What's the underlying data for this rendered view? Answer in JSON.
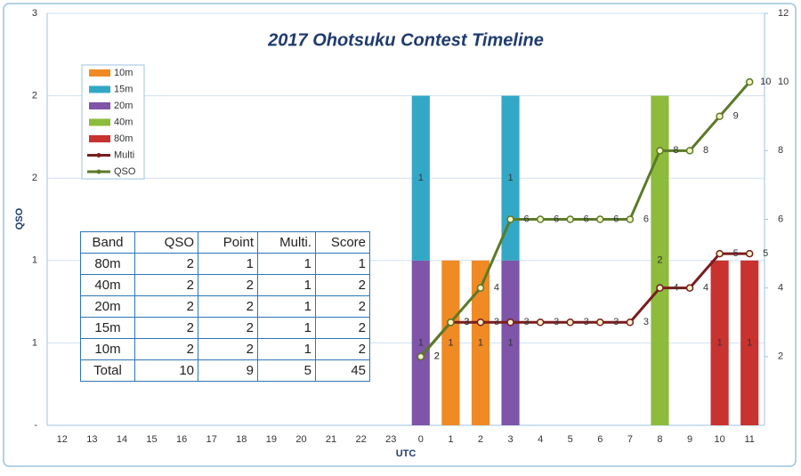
{
  "chart_data": {
    "type": "bar",
    "stacked": true,
    "title": "2017 Ohotsuku Contest Timeline",
    "y_label": "QSO",
    "x_label": "UTC",
    "categories": [
      "12",
      "13",
      "14",
      "15",
      "16",
      "17",
      "18",
      "19",
      "20",
      "21",
      "22",
      "23",
      "0",
      "1",
      "2",
      "3",
      "4",
      "5",
      "6",
      "7",
      "8",
      "9",
      "10",
      "11"
    ],
    "ylim": [
      0,
      2.5
    ],
    "yticks": [
      {
        "value": 0,
        "label": "-"
      },
      {
        "value": 0.5,
        "label": "1"
      },
      1,
      {
        "value": 1.5,
        "label": "2"
      },
      2,
      {
        "value": 2.5,
        "label": "3"
      }
    ],
    "y2lim": [
      0,
      12
    ],
    "y2ticks": [
      2,
      4,
      6,
      8,
      10,
      12
    ],
    "grid": true,
    "legend": "upper left",
    "series": [
      {
        "name": "10m",
        "color": "#f08a24",
        "values": [
          null,
          null,
          null,
          null,
          null,
          null,
          null,
          null,
          null,
          null,
          null,
          null,
          null,
          1,
          1,
          null,
          null,
          null,
          null,
          null,
          null,
          null,
          null,
          null
        ]
      },
      {
        "name": "15m",
        "color": "#33a8c6",
        "values": [
          null,
          null,
          null,
          null,
          null,
          null,
          null,
          null,
          null,
          null,
          null,
          null,
          1,
          null,
          null,
          1,
          null,
          null,
          null,
          null,
          null,
          null,
          null,
          null
        ]
      },
      {
        "name": "20m",
        "color": "#7e55a8",
        "values": [
          null,
          null,
          null,
          null,
          null,
          null,
          null,
          null,
          null,
          null,
          null,
          null,
          1,
          null,
          null,
          1,
          null,
          null,
          null,
          null,
          null,
          null,
          null,
          null
        ]
      },
      {
        "name": "40m",
        "color": "#8dbb3c",
        "values": [
          null,
          null,
          null,
          null,
          null,
          null,
          null,
          null,
          null,
          null,
          null,
          null,
          null,
          null,
          null,
          null,
          null,
          null,
          null,
          null,
          2,
          null,
          null,
          null
        ]
      },
      {
        "name": "80m",
        "color": "#c8322f",
        "values": [
          null,
          null,
          null,
          null,
          null,
          null,
          null,
          null,
          null,
          null,
          null,
          null,
          null,
          null,
          null,
          null,
          null,
          null,
          null,
          null,
          null,
          null,
          1,
          1
        ]
      },
      {
        "name": "Multi",
        "type": "line",
        "axis": "y2",
        "color": "#7a1d1d",
        "values": [
          null,
          null,
          null,
          null,
          null,
          null,
          null,
          null,
          null,
          null,
          null,
          null,
          2,
          3,
          3,
          3,
          3,
          3,
          3,
          3,
          4,
          4,
          5,
          5
        ]
      },
      {
        "name": "QSO",
        "type": "line",
        "axis": "y2",
        "color": "#5c7a28",
        "values": [
          null,
          null,
          null,
          null,
          null,
          null,
          null,
          null,
          null,
          null,
          null,
          null,
          2,
          3,
          4,
          6,
          6,
          6,
          6,
          6,
          8,
          8,
          9,
          10
        ]
      }
    ],
    "table": {
      "header": [
        "Band",
        "QSO",
        "Point",
        "Multi.",
        "Score"
      ],
      "rows": [
        [
          "80m",
          2,
          1,
          1,
          1
        ],
        [
          "40m",
          2,
          2,
          1,
          2
        ],
        [
          "20m",
          2,
          2,
          1,
          2
        ],
        [
          "15m",
          2,
          2,
          1,
          2
        ],
        [
          "10m",
          2,
          2,
          1,
          2
        ],
        [
          "Total",
          10,
          9,
          5,
          45
        ]
      ]
    }
  }
}
